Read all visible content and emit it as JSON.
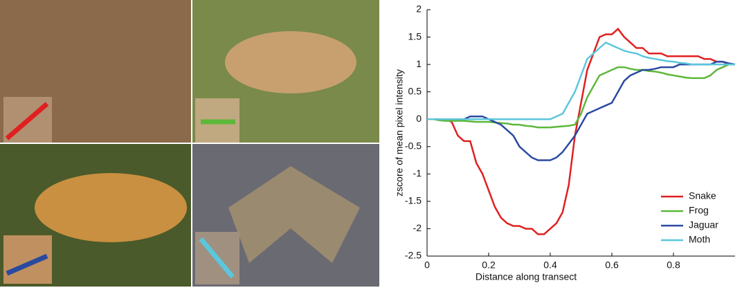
{
  "chart_data": {
    "type": "line",
    "x_label": "Distance along transect",
    "y_label": "zscore of mean pixel intensity",
    "x": [
      0,
      0.02,
      0.04,
      0.06,
      0.08,
      0.1,
      0.12,
      0.14,
      0.16,
      0.18,
      0.2,
      0.22,
      0.24,
      0.26,
      0.28,
      0.3,
      0.32,
      0.34,
      0.36,
      0.38,
      0.4,
      0.42,
      0.44,
      0.46,
      0.48,
      0.5,
      0.52,
      0.54,
      0.56,
      0.58,
      0.6,
      0.62,
      0.64,
      0.66,
      0.68,
      0.7,
      0.72,
      0.74,
      0.76,
      0.78,
      0.8,
      0.82,
      0.84,
      0.86,
      0.88,
      0.9,
      0.92,
      0.94,
      0.96,
      0.98,
      1
    ],
    "series": [
      {
        "name": "Snake",
        "color": "#e02020",
        "values": [
          0,
          0,
          0,
          0,
          -0.05,
          -0.3,
          -0.4,
          -0.4,
          -0.8,
          -1.0,
          -1.3,
          -1.6,
          -1.8,
          -1.9,
          -1.95,
          -1.95,
          -2.0,
          -2.0,
          -2.1,
          -2.1,
          -2.0,
          -1.9,
          -1.7,
          -1.2,
          -0.3,
          0.3,
          0.9,
          1.2,
          1.5,
          1.55,
          1.55,
          1.65,
          1.5,
          1.4,
          1.3,
          1.3,
          1.2,
          1.2,
          1.2,
          1.15,
          1.15,
          1.15,
          1.15,
          1.15,
          1.15,
          1.1,
          1.1,
          1.05,
          1.05,
          1.0,
          1.0
        ]
      },
      {
        "name": "Frog",
        "color": "#5cb83a",
        "values": [
          0,
          0,
          -0.02,
          -0.03,
          -0.03,
          -0.03,
          -0.03,
          -0.04,
          -0.05,
          -0.05,
          -0.05,
          -0.06,
          -0.07,
          -0.08,
          -0.1,
          -0.1,
          -0.12,
          -0.13,
          -0.15,
          -0.15,
          -0.15,
          -0.14,
          -0.13,
          -0.12,
          -0.1,
          0.1,
          0.4,
          0.6,
          0.8,
          0.85,
          0.9,
          0.95,
          0.95,
          0.92,
          0.9,
          0.9,
          0.88,
          0.87,
          0.85,
          0.82,
          0.8,
          0.78,
          0.76,
          0.75,
          0.75,
          0.75,
          0.8,
          0.9,
          0.95,
          1.0,
          1.0
        ]
      },
      {
        "name": "Jaguar",
        "color": "#2a4aa0",
        "values": [
          0,
          0,
          0,
          0,
          0,
          0,
          0,
          0.05,
          0.05,
          0.05,
          0,
          -0.05,
          -0.1,
          -0.2,
          -0.3,
          -0.5,
          -0.6,
          -0.7,
          -0.75,
          -0.75,
          -0.75,
          -0.7,
          -0.6,
          -0.45,
          -0.3,
          -0.1,
          0.1,
          0.15,
          0.2,
          0.25,
          0.3,
          0.5,
          0.7,
          0.8,
          0.85,
          0.9,
          0.9,
          0.92,
          0.95,
          0.95,
          0.95,
          1.0,
          1.0,
          1.0,
          1.0,
          1.0,
          1.0,
          1.05,
          1.05,
          1.02,
          1.0
        ]
      },
      {
        "name": "Moth",
        "color": "#5cc6dc",
        "values": [
          0,
          0,
          0,
          0,
          0,
          0,
          0,
          0,
          0,
          0,
          0,
          0,
          0,
          0,
          0,
          0,
          0,
          0,
          0,
          0,
          0,
          0.05,
          0.1,
          0.3,
          0.5,
          0.8,
          1.1,
          1.2,
          1.3,
          1.4,
          1.35,
          1.3,
          1.25,
          1.22,
          1.2,
          1.15,
          1.12,
          1.1,
          1.08,
          1.06,
          1.05,
          1.03,
          1.02,
          1.0,
          1.0,
          1.0,
          1.0,
          1.0,
          1.0,
          1.0,
          1.0
        ]
      }
    ],
    "xlim": [
      0,
      1
    ],
    "xticks": [
      0,
      0.2,
      0.4,
      0.6,
      0.8
    ],
    "ylim": [
      -2.5,
      2
    ],
    "yticks": [
      -2.5,
      -2,
      -1.5,
      -1,
      -0.5,
      0,
      0.5,
      1,
      1.5,
      2
    ],
    "legend": "lower right"
  }
}
